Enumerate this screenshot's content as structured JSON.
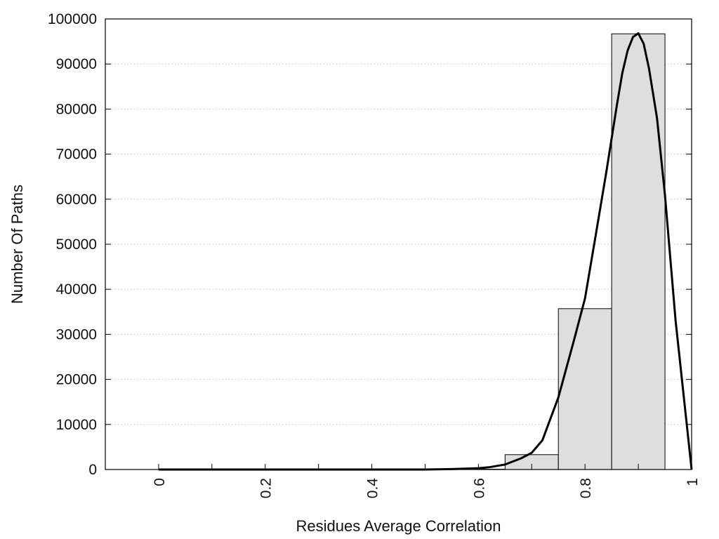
{
  "chart_data": {
    "type": "bar",
    "xlabel": "Residues Average Correlation",
    "ylabel": "Number Of Paths",
    "xlim": [
      -0.1,
      1.0
    ],
    "ylim": [
      0,
      100000
    ],
    "x_ticks": [
      0,
      0.2,
      0.4,
      0.6,
      0.8,
      1
    ],
    "x_tick_labels": [
      "0",
      "0.2",
      "0.4",
      "0.6",
      "0.8",
      "1"
    ],
    "y_ticks": [
      0,
      10000,
      20000,
      30000,
      40000,
      50000,
      60000,
      70000,
      80000,
      90000,
      100000
    ],
    "y_tick_labels": [
      "0",
      "10000",
      "20000",
      "30000",
      "40000",
      "50000",
      "60000",
      "70000",
      "80000",
      "90000",
      "100000"
    ],
    "grid": "horizontal-dotted",
    "legend": "none",
    "bars": [
      {
        "x_start": 0.65,
        "x_end": 0.75,
        "value": 3300
      },
      {
        "x_start": 0.75,
        "x_end": 0.85,
        "value": 35700
      },
      {
        "x_start": 0.85,
        "x_end": 0.95,
        "value": 96700
      }
    ],
    "curve": {
      "x": [
        0,
        0.1,
        0.2,
        0.3,
        0.4,
        0.5,
        0.55,
        0.6,
        0.62,
        0.65,
        0.68,
        0.7,
        0.72,
        0.75,
        0.78,
        0.8,
        0.82,
        0.84,
        0.86,
        0.87,
        0.88,
        0.89,
        0.9,
        0.91,
        0.92,
        0.935,
        0.95,
        0.97,
        1.0
      ],
      "y": [
        0,
        0,
        0,
        0,
        0,
        0,
        100,
        300,
        500,
        1100,
        2500,
        3700,
        6500,
        16000,
        29000,
        38000,
        52000,
        66000,
        81000,
        88000,
        93000,
        96000,
        96800,
        94500,
        89000,
        78000,
        61000,
        33000,
        0
      ]
    },
    "colors": {
      "bar_fill": "#dedede",
      "bar_stroke": "#000000",
      "curve": "#000000",
      "grid": "#c8c8c8"
    }
  }
}
